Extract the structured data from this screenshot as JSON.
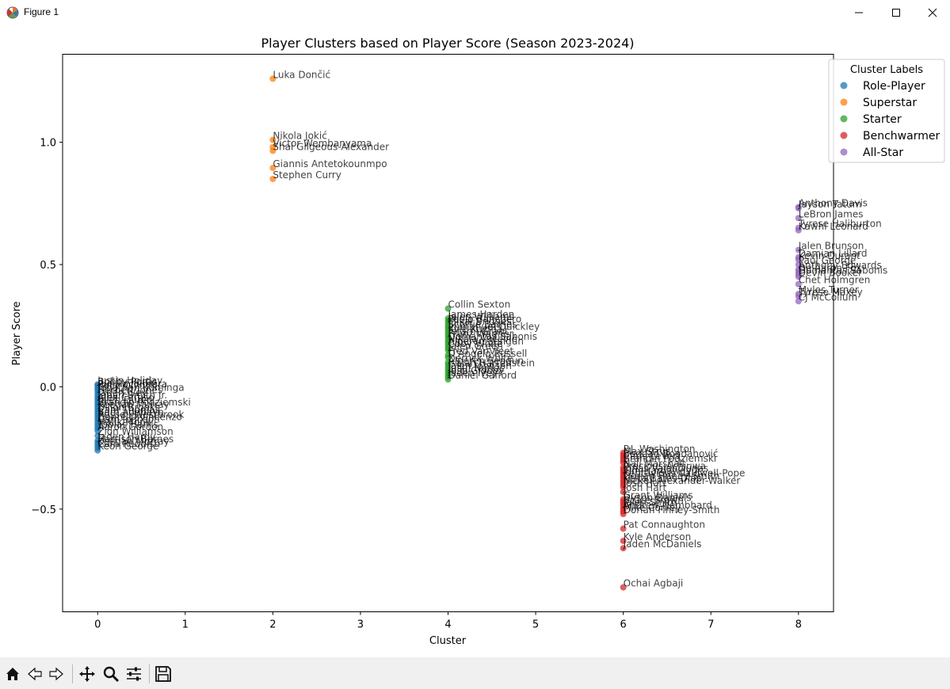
{
  "window": {
    "title": "Figure 1"
  },
  "icons": {
    "app": "matplotlib-figure-icon",
    "minimize": "minimize-icon",
    "maximize": "maximize-icon",
    "close": "close-icon",
    "toolbar": [
      "home-icon",
      "back-arrow-icon",
      "forward-arrow-icon",
      "pan-move-icon",
      "zoom-magnifier-icon",
      "configure-subplots-icon",
      "save-floppy-icon"
    ]
  },
  "chart_data": {
    "type": "scatter",
    "title": "Player Clusters based on Player Score (Season 2023-2024)",
    "xlabel": "Cluster",
    "ylabel": "Player Score",
    "xlim": [
      -0.4,
      8.4
    ],
    "ylim": [
      -0.92,
      1.36
    ],
    "xticks": [
      0,
      1,
      2,
      3,
      4,
      5,
      6,
      7,
      8
    ],
    "yticks": [
      -0.5,
      0.0,
      0.5,
      1.0
    ],
    "ytick_labels": [
      "−0.5",
      "0.0",
      "0.5",
      "1.0"
    ],
    "grid": false,
    "legend": {
      "title": "Cluster Labels",
      "placement": "top-right"
    },
    "series": [
      {
        "name": "Role-Player",
        "color": "#1f77b4",
        "points": [
          {
            "x": 0,
            "y": 0.01,
            "label": "Justin Holiday"
          },
          {
            "x": 0,
            "y": 0.005,
            "label": "Bobby Portis"
          },
          {
            "x": 0,
            "y": -0.005,
            "label": "Rui Hachimura"
          },
          {
            "x": 0,
            "y": -0.01,
            "label": "Kelly Olynyk"
          },
          {
            "x": 0,
            "y": -0.02,
            "label": "Jonathan Kuminga"
          },
          {
            "x": 0,
            "y": -0.03,
            "label": "Herbert Jones"
          },
          {
            "x": 0,
            "y": -0.04,
            "label": "Jaden Ivey"
          },
          {
            "x": 0,
            "y": -0.05,
            "label": "Jabari Smith Jr."
          },
          {
            "x": 0,
            "y": -0.06,
            "label": "Alex Caruso"
          },
          {
            "x": 0,
            "y": -0.07,
            "label": "Jalen Duren"
          },
          {
            "x": 0,
            "y": -0.08,
            "label": "Brandin Podziemski"
          },
          {
            "x": 0,
            "y": -0.09,
            "label": "Keegan Murray"
          },
          {
            "x": 0,
            "y": -0.1,
            "label": "Dillon Brooks"
          },
          {
            "x": 0,
            "y": -0.11,
            "label": "Cam Thomas"
          },
          {
            "x": 0,
            "y": -0.12,
            "label": "Bam Adebayo"
          },
          {
            "x": 0,
            "y": -0.13,
            "label": "Russell Westbrook"
          },
          {
            "x": 0,
            "y": -0.14,
            "label": "Donte DiVincenzo"
          },
          {
            "x": 0,
            "y": -0.15,
            "label": "Cam Johnson"
          },
          {
            "x": 0,
            "y": -0.16,
            "label": "Malik Monk"
          },
          {
            "x": 0,
            "y": -0.17,
            "label": "Tobias Harris"
          },
          {
            "x": 0,
            "y": -0.18,
            "label": "Aaron Gordon"
          },
          {
            "x": 0,
            "y": -0.2,
            "label": "Zion Williamson"
          },
          {
            "x": 0,
            "y": -0.22,
            "label": "Jaden Hardy"
          },
          {
            "x": 0,
            "y": -0.23,
            "label": "Harrison Barnes"
          },
          {
            "x": 0,
            "y": -0.24,
            "label": "Keegan Murray"
          },
          {
            "x": 0,
            "y": -0.25,
            "label": "Cam Reddish"
          },
          {
            "x": 0,
            "y": -0.26,
            "label": "Keon George"
          }
        ]
      },
      {
        "name": "Superstar",
        "color": "#ff7f0e",
        "points": [
          {
            "x": 2,
            "y": 1.26,
            "label": "Luka Dončić"
          },
          {
            "x": 2,
            "y": 1.01,
            "label": "Nikola Jokić"
          },
          {
            "x": 2,
            "y": 0.98,
            "label": "Victor Wembanyama"
          },
          {
            "x": 2,
            "y": 0.965,
            "label": "Shai Gilgeous-Alexander"
          },
          {
            "x": 2,
            "y": 0.895,
            "label": "Giannis Antetokounmpo"
          },
          {
            "x": 2,
            "y": 0.85,
            "label": "Stephen Curry"
          }
        ]
      },
      {
        "name": "Starter",
        "color": "#2ca02c",
        "points": [
          {
            "x": 4,
            "y": 0.32,
            "label": "Collin Sexton"
          },
          {
            "x": 4,
            "y": 0.28,
            "label": "James Harden"
          },
          {
            "x": 4,
            "y": 0.27,
            "label": "Jalen Williams"
          },
          {
            "x": 4,
            "y": 0.26,
            "label": "Paolo Banchero"
          },
          {
            "x": 4,
            "y": 0.25,
            "label": "Mikal Bridges"
          },
          {
            "x": 4,
            "y": 0.24,
            "label": "Scottie Barnes"
          },
          {
            "x": 4,
            "y": 0.23,
            "label": "Immanuel Quickley"
          },
          {
            "x": 4,
            "y": 0.22,
            "label": "Kyle Kuzma"
          },
          {
            "x": 4,
            "y": 0.21,
            "label": "Jerami Grant"
          },
          {
            "x": 4,
            "y": 0.2,
            "label": "Franz Wagner"
          },
          {
            "x": 4,
            "y": 0.19,
            "label": "Domantas Sabonis"
          },
          {
            "x": 4,
            "y": 0.18,
            "label": "Nikola Vučević"
          },
          {
            "x": 4,
            "y": 0.17,
            "label": "Alperen Şengün"
          },
          {
            "x": 4,
            "y": 0.16,
            "label": "Coby White"
          },
          {
            "x": 4,
            "y": 0.15,
            "label": "Jalen Green"
          },
          {
            "x": 4,
            "y": 0.13,
            "label": "Fred VanVleet"
          },
          {
            "x": 4,
            "y": 0.12,
            "label": "D'Angelo Russell"
          },
          {
            "x": 4,
            "y": 0.1,
            "label": "Derrick White"
          },
          {
            "x": 4,
            "y": 0.09,
            "label": "Alperen Sengun"
          },
          {
            "x": 4,
            "y": 0.08,
            "label": "Isaiah Hartenstein"
          },
          {
            "x": 4,
            "y": 0.07,
            "label": "Jalen Johnson"
          },
          {
            "x": 4,
            "y": 0.06,
            "label": "Jusuf Nurkić"
          },
          {
            "x": 4,
            "y": 0.05,
            "label": "Josh Giddey"
          },
          {
            "x": 4,
            "y": 0.04,
            "label": "Jaden Ivey"
          },
          {
            "x": 4,
            "y": 0.03,
            "label": "Daniel Gafford"
          }
        ]
      },
      {
        "name": "Benchwarmer",
        "color": "#d62728",
        "points": [
          {
            "x": 6,
            "y": -0.27,
            "label": "P.J. Washington"
          },
          {
            "x": 6,
            "y": -0.28,
            "label": "Max Strus"
          },
          {
            "x": 6,
            "y": -0.29,
            "label": "Bogdan Bogdanović"
          },
          {
            "x": 6,
            "y": -0.3,
            "label": "Caris LeVert"
          },
          {
            "x": 6,
            "y": -0.31,
            "label": "Brandin Podziemski"
          },
          {
            "x": 6,
            "y": -0.33,
            "label": "Naji Marshall"
          },
          {
            "x": 6,
            "y": -0.34,
            "label": "Precious Achiuwa"
          },
          {
            "x": 6,
            "y": -0.35,
            "label": "Jonas Valančiūnas"
          },
          {
            "x": 6,
            "y": -0.36,
            "label": "Tim Hardaway Jr."
          },
          {
            "x": 6,
            "y": -0.37,
            "label": "Kentavious Caldwell-Pope"
          },
          {
            "x": 6,
            "y": -0.38,
            "label": "Dorian Finney-Smith"
          },
          {
            "x": 6,
            "y": -0.39,
            "label": "Keita Bates-Diop"
          },
          {
            "x": 6,
            "y": -0.4,
            "label": "Nickeil Alexander-Walker"
          },
          {
            "x": 6,
            "y": -0.41,
            "label": "Josh Hart"
          },
          {
            "x": 6,
            "y": -0.43,
            "label": "Josh Hart"
          },
          {
            "x": 6,
            "y": -0.46,
            "label": "Grant Williams"
          },
          {
            "x": 6,
            "y": -0.47,
            "label": "Dyson Daniels"
          },
          {
            "x": 6,
            "y": -0.48,
            "label": "Bruce Brown"
          },
          {
            "x": 6,
            "y": -0.49,
            "label": "Jalen Smith"
          },
          {
            "x": 6,
            "y": -0.5,
            "label": "Andrew Nembhard"
          },
          {
            "x": 6,
            "y": -0.51,
            "label": "Mike Conley"
          },
          {
            "x": 6,
            "y": -0.52,
            "label": "Dorian Finney-Smith"
          },
          {
            "x": 6,
            "y": -0.58,
            "label": "Pat Connaughton"
          },
          {
            "x": 6,
            "y": -0.63,
            "label": "Kyle Anderson"
          },
          {
            "x": 6,
            "y": -0.66,
            "label": "Jaden McDaniels"
          },
          {
            "x": 6,
            "y": -0.82,
            "label": "Ochai Agbaji"
          }
        ]
      },
      {
        "name": "All-Star",
        "color": "#9467bd",
        "points": [
          {
            "x": 8,
            "y": 0.735,
            "label": "Anthony Davis"
          },
          {
            "x": 8,
            "y": 0.73,
            "label": "Jayson Tatum"
          },
          {
            "x": 8,
            "y": 0.69,
            "label": "LeBron James"
          },
          {
            "x": 8,
            "y": 0.65,
            "label": "Tyrese Haliburton"
          },
          {
            "x": 8,
            "y": 0.64,
            "label": "Kawhi Leonard"
          },
          {
            "x": 8,
            "y": 0.56,
            "label": "Jalen Brunson"
          },
          {
            "x": 8,
            "y": 0.53,
            "label": "Damian Lillard"
          },
          {
            "x": 8,
            "y": 0.52,
            "label": "Kevin Durant"
          },
          {
            "x": 8,
            "y": 0.5,
            "label": "Paul George"
          },
          {
            "x": 8,
            "y": 0.48,
            "label": "Anthony Edwards"
          },
          {
            "x": 8,
            "y": 0.47,
            "label": "De'Aaron Fox"
          },
          {
            "x": 8,
            "y": 0.46,
            "label": "Domantas Sabonis"
          },
          {
            "x": 8,
            "y": 0.45,
            "label": "Devin Booker"
          },
          {
            "x": 8,
            "y": 0.42,
            "label": "Chet Holmgren"
          },
          {
            "x": 8,
            "y": 0.38,
            "label": "Myles Turner"
          },
          {
            "x": 8,
            "y": 0.37,
            "label": "Tyrese Maxey"
          },
          {
            "x": 8,
            "y": 0.35,
            "label": "CJ McCollum"
          }
        ]
      }
    ]
  }
}
